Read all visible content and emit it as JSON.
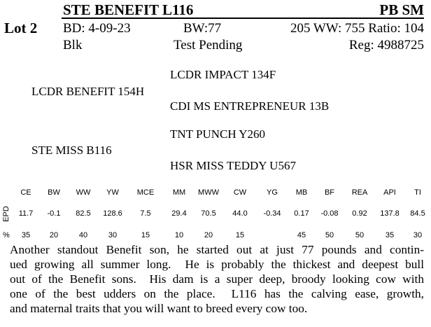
{
  "lot": {
    "label": "Lot 2",
    "name": "STE BENEFIT L116",
    "breed": "PB SM",
    "birth_date": "BD: 4-09-23",
    "birth_weight": "BW:77",
    "weaning": "205 WW: 755 Ratio: 104",
    "color": "Blk",
    "test": "Test Pending",
    "registration": "Reg: 4988725"
  },
  "pedigree": {
    "sire": "LCDR BENEFIT 154H",
    "sire_sire": "LCDR IMPACT 134F",
    "sire_dam": "CDI MS ENTREPRENEUR 13B",
    "dam": "STE MISS B116",
    "dam_sire": "TNT PUNCH Y260",
    "dam_dam": "HSR MISS TEDDY U567"
  },
  "epd_table": {
    "row_labels": [
      "EPD",
      "%"
    ],
    "columns": [
      "CE",
      "BW",
      "WW",
      "YW",
      "MCE",
      "MM",
      "MWW",
      "CW",
      "YG",
      "MB",
      "BF",
      "REA",
      "API",
      "TI"
    ],
    "epd": [
      "11.7",
      "-0.1",
      "82.5",
      "128.6",
      "7.5",
      "29.4",
      "70.5",
      "44.0",
      "-0.34",
      "0.17",
      "-0.08",
      "0.92",
      "137.8",
      "84.5"
    ],
    "percent": [
      "35",
      "20",
      "40",
      "30",
      "15",
      "10",
      "20",
      "15",
      null,
      "45",
      "50",
      "50",
      "35",
      "30"
    ]
  },
  "description": {
    "lines": [
      "Another standout Benefit son, he started out at just 77 pounds and contin-",
      "ued growing all summer long.  He is probably the thickest and deepest bull",
      "out of the Benefit sons.  His dam is a super deep, broody looking cow with",
      "one of the best udders on the place.  L116 has the calving ease, growth,",
      "and maternal traits that you will want to breed every cow too."
    ]
  }
}
